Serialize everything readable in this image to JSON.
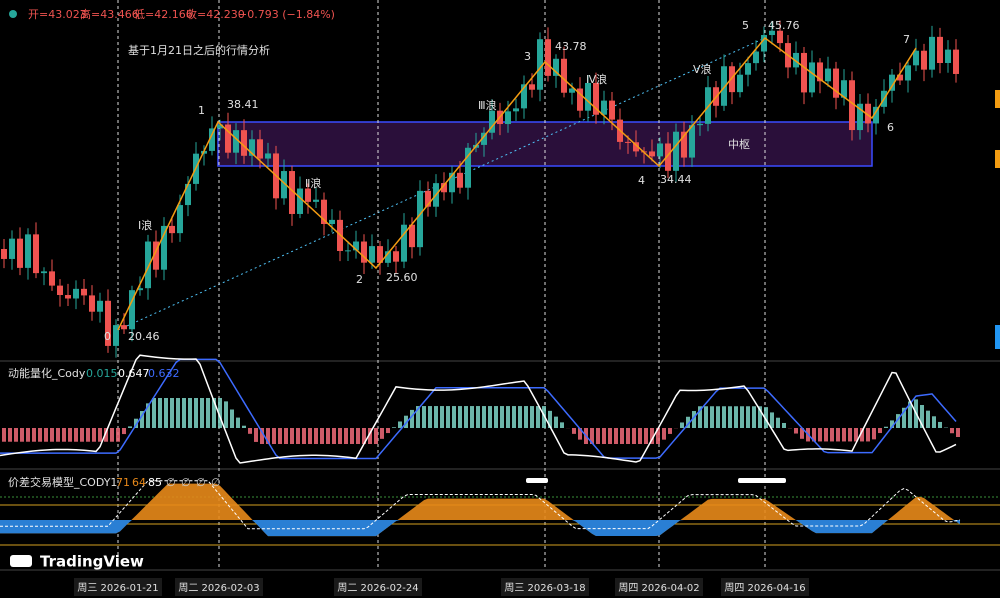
{
  "header": {
    "items": [
      "开=43.023",
      "高=43.466",
      "低=42.166",
      "收=42.230",
      "−0.793 (−1.84%)"
    ]
  },
  "title": "基于1月21日之后的行情分析",
  "pivots": [
    {
      "label": "0",
      "price": "20.46"
    },
    {
      "label": "1",
      "price": "38.41"
    },
    {
      "label": "2",
      "price": "25.60"
    },
    {
      "label": "3",
      "price": "43.78"
    },
    {
      "label": "4",
      "price": "34.44"
    },
    {
      "label": "5",
      "price": "45.76"
    },
    {
      "label": "6"
    },
    {
      "label": "7"
    }
  ],
  "waves": [
    "Ⅰ浪",
    "Ⅱ浪",
    "Ⅲ浪",
    "Ⅳ浪",
    "Ⅴ浪"
  ],
  "zone": "中枢",
  "indicator1": {
    "name": "动能量化_Cody",
    "values": [
      "0.015",
      "0.647",
      "0.632"
    ]
  },
  "indicator2": {
    "name": "价差交易模型_CODY1",
    "values": [
      "71",
      "64",
      "85",
      "∅",
      "∅",
      "∅",
      "∅"
    ]
  },
  "dates": [
    "周三 2026-01-21",
    "周二 2026-02-03",
    "周二 2026-02-24",
    "周三 2026-03-18",
    "周四 2026-04-02",
    "周四 2026-04-16"
  ],
  "logo": "TradingView"
}
